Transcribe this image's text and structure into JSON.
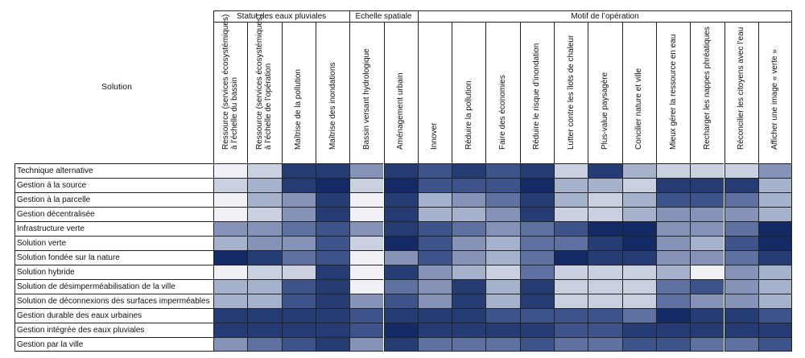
{
  "corner_label": "Solution",
  "groups": [
    "Statut des eaux pluviales",
    "Echelle spatiale",
    "Motif de l’opération"
  ],
  "columns": [
    [
      "Ressource (services écosystémiques)",
      "à l’échelle du bassin"
    ],
    [
      "Ressource (services écosystémiques)",
      "à l’échelle de l’opération"
    ],
    [
      "Maîtrise de la pollution"
    ],
    [
      "Maîtrise des inondations"
    ],
    [
      "Bassin versant hydrologique"
    ],
    [
      "Aménagement urbain"
    ],
    [
      "Innover"
    ],
    [
      "Réduire la pollution"
    ],
    [
      "Faire des économies"
    ],
    [
      "Réduire le risque d’inondation"
    ],
    [
      "Lutter contre les îlots de chaleur"
    ],
    [
      "Plus-value paysagère"
    ],
    [
      "Concilier nature et ville"
    ],
    [
      "Mieux gérer la ressource en eau"
    ],
    [
      "Recharger les nappes phréatiques"
    ],
    [
      "Réconcilier les citoyens avec l’eau"
    ],
    [
      "Afficher une image « verte »"
    ]
  ],
  "rows": [
    "Technique alternative",
    "Gestion à la source",
    "Gestion à la parcelle",
    "Gestion décentralisée",
    "Infrastructure verte",
    "Solution verte",
    "Solution fondée sur la nature",
    "Solution hybride",
    "Solution de désimperméabilisation de la ville",
    "Solution de déconnexions des surfaces imperméables",
    "Gestion durable des eaux urbaines",
    "Gestion intégrée des eaux pluviales",
    "Gestion par la ville"
  ],
  "colors": [
    "#f0f1f6",
    "#c9d0e0",
    "#a6b1cc",
    "#8593b8",
    "#5f71a0",
    "#3e5389",
    "#263c75",
    "#142a65"
  ],
  "chart_data": {
    "type": "heatmap",
    "title": "",
    "legend": "none",
    "column_groups": [
      {
        "name": "Statut des eaux pluviales",
        "span": 4
      },
      {
        "name": "Echelle spatiale",
        "span": 2
      },
      {
        "name": "Motif de l’opération",
        "span": 11
      }
    ],
    "scale": "ordinal intensity 0 (white) to 7 (dark navy)",
    "values": [
      [
        0,
        1,
        6,
        6,
        3,
        6,
        5,
        6,
        5,
        6,
        1,
        6,
        2,
        1,
        1,
        1,
        3
      ],
      [
        1,
        2,
        6,
        7,
        1,
        7,
        5,
        5,
        5,
        7,
        2,
        2,
        1,
        6,
        6,
        6,
        2
      ],
      [
        0,
        2,
        3,
        6,
        0,
        6,
        2,
        3,
        4,
        6,
        2,
        1,
        2,
        5,
        5,
        4,
        2
      ],
      [
        0,
        1,
        3,
        6,
        0,
        6,
        2,
        2,
        3,
        6,
        1,
        1,
        2,
        3,
        3,
        3,
        2
      ],
      [
        3,
        3,
        4,
        5,
        3,
        6,
        5,
        4,
        3,
        4,
        5,
        7,
        7,
        3,
        3,
        4,
        7
      ],
      [
        2,
        3,
        3,
        5,
        1,
        7,
        5,
        3,
        2,
        4,
        4,
        6,
        7,
        3,
        2,
        5,
        7
      ],
      [
        7,
        6,
        4,
        5,
        0,
        3,
        5,
        3,
        2,
        4,
        7,
        6,
        6,
        3,
        3,
        4,
        6
      ],
      [
        0,
        1,
        1,
        6,
        0,
        6,
        3,
        2,
        1,
        4,
        1,
        1,
        1,
        2,
        0,
        3,
        2
      ],
      [
        2,
        2,
        5,
        6,
        0,
        4,
        3,
        6,
        2,
        6,
        1,
        1,
        1,
        4,
        5,
        3,
        2
      ],
      [
        2,
        2,
        5,
        6,
        3,
        5,
        3,
        6,
        2,
        6,
        1,
        1,
        1,
        4,
        3,
        3,
        2
      ],
      [
        6,
        6,
        6,
        6,
        5,
        6,
        6,
        6,
        5,
        5,
        5,
        5,
        4,
        7,
        6,
        6,
        5
      ],
      [
        6,
        6,
        6,
        6,
        5,
        7,
        6,
        6,
        6,
        6,
        5,
        5,
        6,
        6,
        6,
        6,
        6
      ],
      [
        3,
        4,
        5,
        6,
        3,
        6,
        4,
        4,
        4,
        5,
        4,
        4,
        5,
        5,
        4,
        4,
        5
      ]
    ]
  }
}
